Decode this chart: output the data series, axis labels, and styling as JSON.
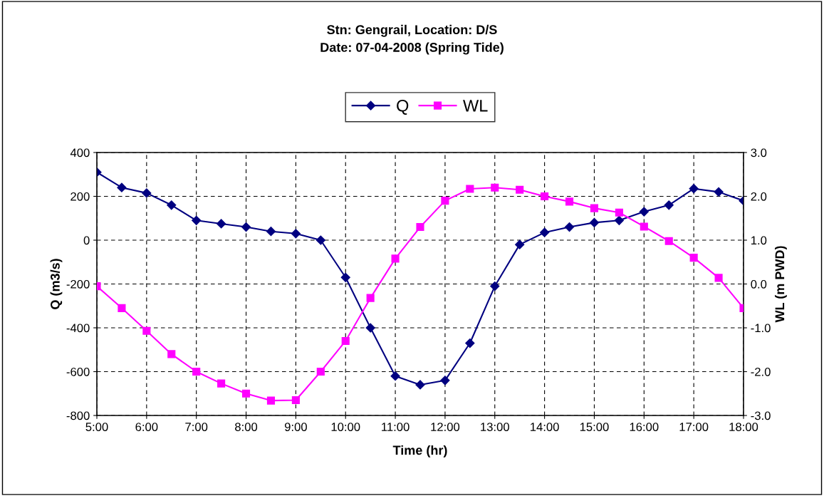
{
  "chart_data": {
    "type": "line",
    "title": "Stn: Gengrail, Location: D/S\nDate: 07-04-2008 (Spring Tide)",
    "xlabel": "Time (hr)",
    "ylabel": "Q (m3/s)",
    "y2label": "WL (m PWD)",
    "x": [
      5,
      5.5,
      6,
      6.5,
      7,
      7.5,
      8,
      8.5,
      9,
      9.5,
      10,
      10.5,
      11,
      11.5,
      12,
      12.5,
      13,
      13.5,
      14,
      14.5,
      15,
      15.5,
      16,
      16.5,
      17,
      17.5,
      18
    ],
    "series": [
      {
        "name": "Q",
        "color": "#000080",
        "marker": "diamond",
        "values": [
          310,
          240,
          215,
          160,
          90,
          75,
          60,
          40,
          30,
          0,
          -170,
          -400,
          -620,
          -660,
          -640,
          -470,
          -210,
          -20,
          35,
          60,
          80,
          90,
          130,
          160,
          235,
          220,
          180
        ]
      },
      {
        "name": "WL",
        "color": "#ff00ff",
        "marker": "square",
        "axis": "y2",
        "values": [
          -0.05,
          -0.55,
          -1.07,
          -1.6,
          -2.0,
          -2.27,
          -2.5,
          -2.66,
          -2.65,
          -2.0,
          -1.3,
          -0.32,
          0.58,
          1.3,
          1.9,
          2.17,
          2.2,
          2.15,
          2.0,
          1.88,
          1.73,
          1.63,
          1.31,
          0.98,
          0.6,
          0.14,
          -0.55
        ]
      }
    ],
    "xlim": [
      5,
      18
    ],
    "xticks": [
      {
        "value": 5,
        "label": "5:00"
      },
      {
        "value": 6,
        "label": "6:00"
      },
      {
        "value": 7,
        "label": "7:00"
      },
      {
        "value": 8,
        "label": "8:00"
      },
      {
        "value": 9,
        "label": "9:00"
      },
      {
        "value": 10,
        "label": "10:00"
      },
      {
        "value": 11,
        "label": "11:00"
      },
      {
        "value": 12,
        "label": "12:00"
      },
      {
        "value": 13,
        "label": "13:00"
      },
      {
        "value": 14,
        "label": "14:00"
      },
      {
        "value": 15,
        "label": "15:00"
      },
      {
        "value": 16,
        "label": "16:00"
      },
      {
        "value": 17,
        "label": "17:00"
      },
      {
        "value": 18,
        "label": "18:00"
      }
    ],
    "ylim": [
      -800,
      400
    ],
    "yticks": [
      -800,
      -600,
      -400,
      -200,
      0,
      200,
      400
    ],
    "y2lim": [
      -3,
      3
    ],
    "y2ticks": [
      {
        "value": -3,
        "label": "-3.0"
      },
      {
        "value": -2,
        "label": "-2.0"
      },
      {
        "value": -1,
        "label": "-1.0"
      },
      {
        "value": 0,
        "label": "0.0"
      },
      {
        "value": 1,
        "label": "1.0"
      },
      {
        "value": 2,
        "label": "2.0"
      },
      {
        "value": 3,
        "label": "3.0"
      }
    ],
    "grid": true,
    "legend": "top",
    "line_style": "solid"
  }
}
